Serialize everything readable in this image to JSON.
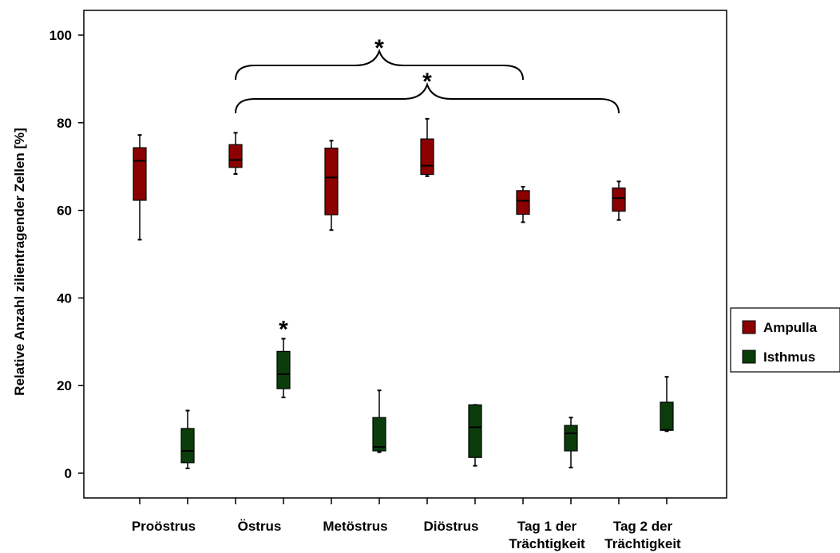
{
  "chart_data": {
    "type": "box",
    "ylabel": "Relative Anzahl zilientragender Zellen [%]",
    "ylim": [
      -5,
      105
    ],
    "yticks": [
      0,
      20,
      40,
      60,
      80,
      100
    ],
    "categories": [
      "Proöstrus",
      "Östrus",
      "Metöstrus",
      "Diöstrus",
      "Tag 1 der Trächtigkeit",
      "Tag 2 der Trächtigkeit"
    ],
    "category_lines": [
      [
        "Proöstrus"
      ],
      [
        "Östrus"
      ],
      [
        "Metöstrus"
      ],
      [
        "Diöstrus"
      ],
      [
        "Tag 1 der",
        "Trächtigkeit"
      ],
      [
        "Tag 2 der",
        "Trächtigkeit"
      ]
    ],
    "series": [
      {
        "name": "Ampulla",
        "color": "#8b0000",
        "boxes": [
          {
            "min": 53.3,
            "q1": 62.3,
            "median": 71.3,
            "q3": 74.3,
            "max": 77.2
          },
          {
            "min": 68.3,
            "q1": 69.8,
            "median": 71.5,
            "q3": 75.0,
            "max": 77.7
          },
          {
            "min": 55.5,
            "q1": 59.0,
            "median": 67.5,
            "q3": 74.2,
            "max": 75.9
          },
          {
            "min": 67.8,
            "q1": 68.2,
            "median": 70.2,
            "q3": 76.3,
            "max": 80.9
          },
          {
            "min": 57.3,
            "q1": 59.1,
            "median": 62.2,
            "q3": 64.5,
            "max": 65.4
          },
          {
            "min": 57.8,
            "q1": 59.8,
            "median": 62.8,
            "q3": 65.1,
            "max": 66.6
          }
        ]
      },
      {
        "name": "Isthmus",
        "color": "#0b3d0b",
        "boxes": [
          {
            "min": 1.1,
            "q1": 2.4,
            "median": 5.1,
            "q3": 10.2,
            "max": 14.3
          },
          {
            "min": 17.3,
            "q1": 19.3,
            "median": 22.6,
            "q3": 27.8,
            "max": 30.7
          },
          {
            "min": 4.8,
            "q1": 5.1,
            "median": 6.0,
            "q3": 12.7,
            "max": 18.9
          },
          {
            "min": 1.7,
            "q1": 3.6,
            "median": 10.5,
            "q3": 15.6,
            "max": 15.6
          },
          {
            "min": 1.3,
            "q1": 5.1,
            "median": 9.1,
            "q3": 10.9,
            "max": 12.7
          },
          {
            "min": 9.6,
            "q1": 9.8,
            "median": 9.9,
            "q3": 16.2,
            "max": 22.0
          }
        ]
      }
    ],
    "annotations": {
      "significance_marker": "*",
      "brackets": [
        {
          "from_category": 1,
          "to_category": 4,
          "label": "*"
        },
        {
          "from_category": 1,
          "to_category": 5,
          "label": "*"
        }
      ],
      "point_markers": [
        {
          "series": 1,
          "category": 1,
          "label": "*"
        }
      ]
    },
    "legend": {
      "placement": "right",
      "entries": [
        "Ampulla",
        "Isthmus"
      ]
    }
  }
}
